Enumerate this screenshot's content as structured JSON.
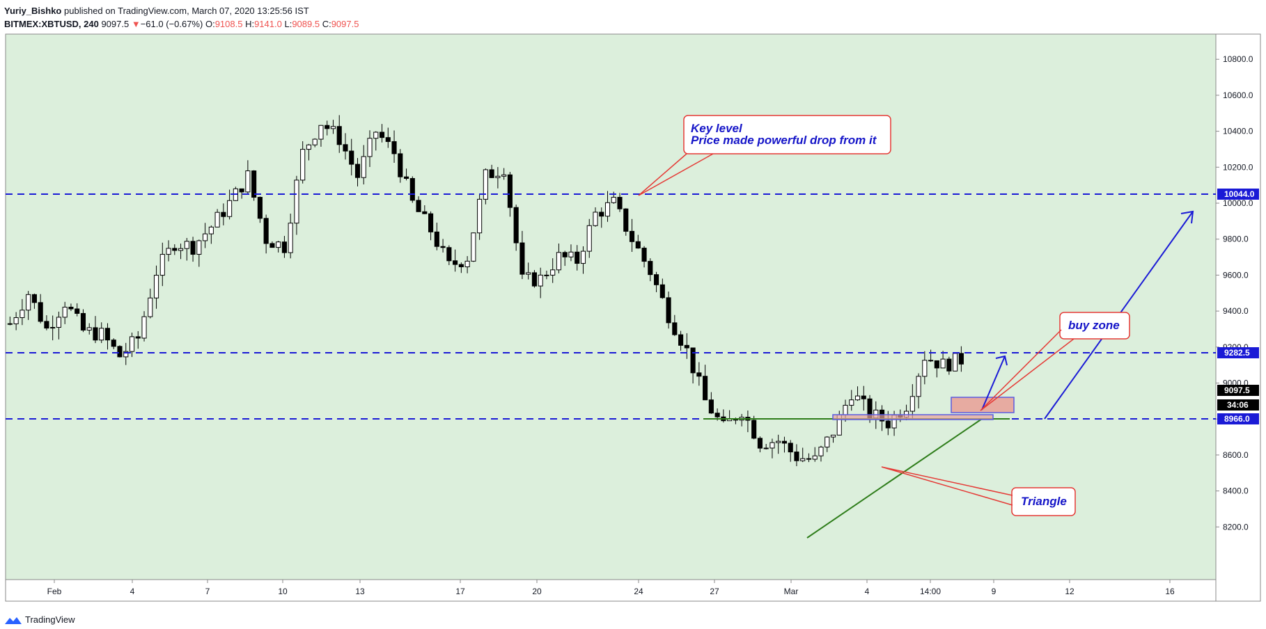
{
  "header": {
    "author": "Yuriy_Bishko",
    "published_text": "published on TradingView.com, March 07, 2020 13:25:56 IST",
    "symbol": "BITMEX:XBTUSD, 240",
    "last": "9097.5",
    "change": "−61.0 (−0.67%)",
    "o_label": "O:",
    "o_value": "9108.5",
    "h_label": "H:",
    "h_value": "9141.0",
    "l_label": "L:",
    "l_value": "9089.5",
    "c_label": "C:",
    "c_value": "9097.5"
  },
  "footer": {
    "brand": "TradingView"
  },
  "colors": {
    "background": "#dcefdc",
    "level_line": "#1a1ad6",
    "callout_border": "#e53935",
    "annotation_text": "#1515c8",
    "triangle_line": "#2e7d1a",
    "buy_zone_fill": "#e8a39a",
    "price_tag": "#000000"
  },
  "annotations": {
    "key_level_line1": "Key level",
    "key_level_line2": "Price made powerful drop from it",
    "buy_zone": "buy zone",
    "triangle": "Triangle"
  },
  "price_tags": {
    "upper_level": "10044.0",
    "middle_level": "9282.5",
    "last_price": "9097.5",
    "countdown": "34:06",
    "lower_level": "8966.0"
  },
  "chart_data": {
    "type": "candlestick",
    "symbol": "BITMEX:XBTUSD",
    "interval": "240",
    "y_axis": {
      "ticks": [
        "10800.0",
        "10600.0",
        "10400.0",
        "10200.0",
        "10000.0",
        "9800.0",
        "9600.0",
        "9400.0",
        "9200.0",
        "9000.0",
        "8800.0",
        "8600.0",
        "8400.0",
        "8200.0"
      ],
      "ylim": [
        8200,
        10850
      ]
    },
    "x_axis": {
      "ticks": [
        "Feb",
        "4",
        "7",
        "10",
        "13",
        "17",
        "20",
        "24",
        "27",
        "Mar",
        "4",
        "14:00",
        "9",
        "12",
        "16"
      ]
    },
    "horizontal_levels": [
      10044.0,
      9282.5,
      8966.0
    ],
    "series": [
      {
        "segment": "late-Jan to mid-Feb",
        "path": [
          [
            0,
            9330
          ],
          [
            3,
            9500
          ],
          [
            6,
            9300
          ],
          [
            9,
            9450
          ],
          [
            12,
            9290
          ],
          [
            15,
            9270
          ],
          [
            18,
            9150
          ],
          [
            21,
            9250
          ],
          [
            24,
            9620
          ],
          [
            27,
            9780
          ],
          [
            30,
            9760
          ],
          [
            33,
            9870
          ],
          [
            36,
            10000
          ],
          [
            39,
            10150
          ],
          [
            42,
            9800
          ],
          [
            45,
            9760
          ],
          [
            48,
            10280
          ],
          [
            51,
            10450
          ],
          [
            54,
            10360
          ],
          [
            57,
            10150
          ],
          [
            60,
            10400
          ],
          [
            63,
            10280
          ]
        ]
      },
      {
        "segment": "mid-Feb to early-Mar",
        "path": [
          [
            66,
            10000
          ],
          [
            69,
            9850
          ],
          [
            72,
            9650
          ],
          [
            75,
            9700
          ],
          [
            78,
            10150
          ],
          [
            81,
            10200
          ],
          [
            84,
            9570
          ],
          [
            87,
            9580
          ],
          [
            90,
            9700
          ],
          [
            93,
            9680
          ],
          [
            96,
            9940
          ],
          [
            99,
            10000
          ],
          [
            102,
            9800
          ],
          [
            105,
            9620
          ],
          [
            108,
            9380
          ],
          [
            111,
            9180
          ],
          [
            114,
            8900
          ],
          [
            117,
            8750
          ],
          [
            120,
            8850
          ],
          [
            123,
            8670
          ],
          [
            126,
            8680
          ],
          [
            129,
            8590
          ],
          [
            132,
            8570
          ],
          [
            135,
            8730
          ],
          [
            138,
            8950
          ],
          [
            141,
            8830
          ],
          [
            144,
            8780
          ],
          [
            147,
            8880
          ],
          [
            150,
            9150
          ],
          [
            153,
            9100
          ],
          [
            156,
            9130
          ]
        ]
      }
    ]
  }
}
